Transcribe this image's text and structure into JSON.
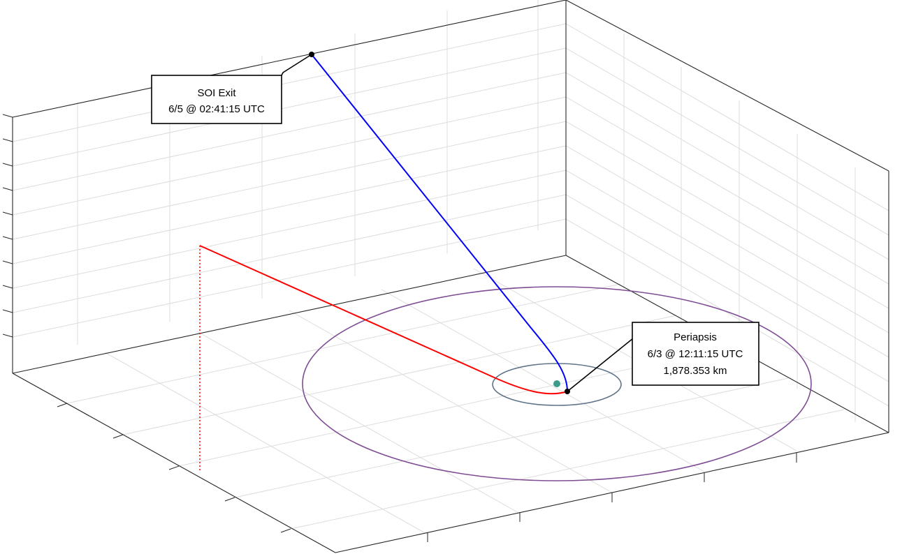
{
  "chart_data": {
    "type": "line",
    "title": "",
    "xlabel": "",
    "ylabel": "",
    "zlabel": "",
    "grid": true,
    "tick_labels_visible": false,
    "series": [
      {
        "role": "arrival-trajectory",
        "color": "#ff0000",
        "style": "solid"
      },
      {
        "role": "departure-trajectory",
        "color": "#0000ff",
        "style": "solid"
      },
      {
        "role": "trajectory-drop-line",
        "color": "#ff0000",
        "style": "dotted"
      },
      {
        "role": "outer-orbit",
        "color": "#7e4d94",
        "style": "solid"
      },
      {
        "role": "inner-orbit",
        "color": "#5f7489",
        "style": "solid"
      },
      {
        "role": "central-body",
        "color": "#3a9a8c",
        "style": "marker"
      }
    ],
    "annotations": [
      {
        "id": "soi-exit",
        "lines": [
          "SOI Exit",
          "6/5 @ 02:41:15 UTC"
        ]
      },
      {
        "id": "periapsis",
        "lines": [
          "Periapsis",
          "6/3 @ 12:11:15 UTC",
          "1,878.353 km"
        ]
      }
    ]
  },
  "colors": {
    "arrival": "#ff0000",
    "departure": "#0000ff",
    "outer_orbit": "#7e4d94",
    "inner_orbit": "#5f7489",
    "body": "#3a9a8c",
    "marker": "#000000"
  }
}
